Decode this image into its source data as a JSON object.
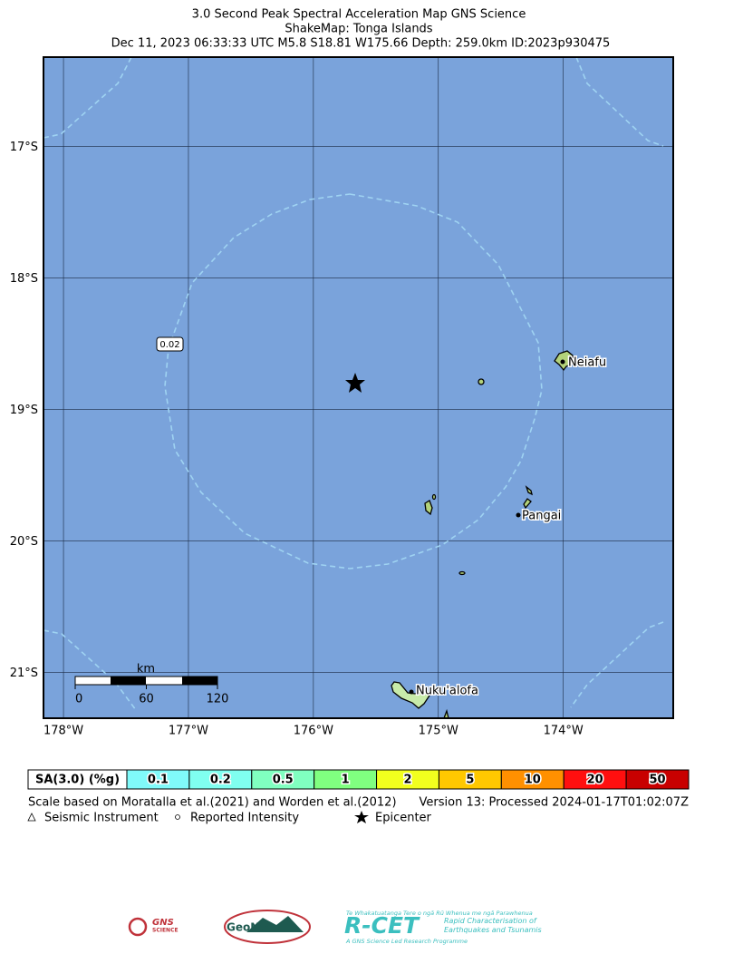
{
  "header": {
    "title": "3.0 Second Peak Spectral Acceleration Map GNS Science",
    "subtitle": "ShakeMap: Tonga Islands",
    "event": "Dec 11, 2023 06:33:33 UTC M5.8 S18.81 W175.66 Depth: 259.0km ID:2023p930475"
  },
  "map": {
    "lon_range": [
      -178.16,
      -173.12
    ],
    "lat_range": [
      -16.32,
      -21.35
    ],
    "lon_ticks": [
      {
        "value": -178,
        "label": "178°W"
      },
      {
        "value": -177,
        "label": "177°W"
      },
      {
        "value": -176,
        "label": "176°W"
      },
      {
        "value": -175,
        "label": "175°W"
      },
      {
        "value": -174,
        "label": "174°W"
      }
    ],
    "lat_ticks": [
      {
        "value": -17,
        "label": "17°S"
      },
      {
        "value": -18,
        "label": "18°S"
      },
      {
        "value": -19,
        "label": "19°S"
      },
      {
        "value": -20,
        "label": "20°S"
      },
      {
        "value": -21,
        "label": "21°S"
      }
    ],
    "contour_label": "0.02",
    "places": [
      "Neiafu",
      "Pangai",
      "Nuku'alofa"
    ],
    "scale_bar": {
      "unit": "km",
      "ticks": [
        0,
        60,
        120
      ]
    }
  },
  "legend": {
    "label": "SA(3.0) (%g)",
    "bins": [
      {
        "value": 0.1,
        "color": "#80fafa"
      },
      {
        "value": 0.2,
        "color": "#80fff0"
      },
      {
        "value": 0.5,
        "color": "#80ffc0"
      },
      {
        "value": 1,
        "color": "#80ff80"
      },
      {
        "value": 2,
        "color": "#f2ff1e"
      },
      {
        "value": 5,
        "color": "#ffc800"
      },
      {
        "value": 10,
        "color": "#ff9000"
      },
      {
        "value": 20,
        "color": "#ff0f0f"
      },
      {
        "value": 50,
        "color": "#c80000"
      }
    ]
  },
  "notes": {
    "scale": "Scale based on Moratalla et al.(2021) and Worden et al.(2012)",
    "version": "Version 13: Processed 2024-01-17T01:02:07Z",
    "symbols": [
      "Seismic Instrument",
      "Reported Intensity",
      "Epicenter"
    ]
  },
  "logos": {
    "gns": "GNS",
    "gns_sub": "SCIENCE",
    "geonet": "GeoNet",
    "rcet": "R-CET",
    "rcet_top": "Te Whakatuatanga Tere o ngā Rū Whenua me ngā Parawhenua",
    "rcet_side": "Rapid Characterisation of Earthquakes and Tsunamis",
    "rcet_bottom": "A GNS Science Led Research Programme"
  }
}
